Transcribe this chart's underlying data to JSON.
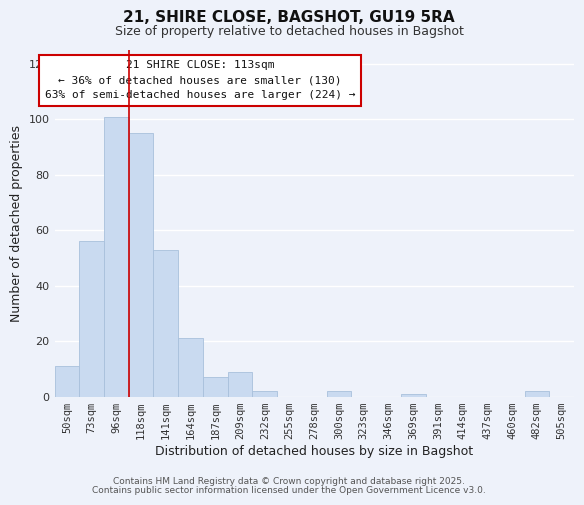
{
  "title": "21, SHIRE CLOSE, BAGSHOT, GU19 5RA",
  "subtitle": "Size of property relative to detached houses in Bagshot",
  "xlabel": "Distribution of detached houses by size in Bagshot",
  "ylabel": "Number of detached properties",
  "bar_labels": [
    "50sqm",
    "73sqm",
    "96sqm",
    "118sqm",
    "141sqm",
    "164sqm",
    "187sqm",
    "209sqm",
    "232sqm",
    "255sqm",
    "278sqm",
    "300sqm",
    "323sqm",
    "346sqm",
    "369sqm",
    "391sqm",
    "414sqm",
    "437sqm",
    "460sqm",
    "482sqm",
    "505sqm"
  ],
  "bar_values": [
    11,
    56,
    101,
    95,
    53,
    21,
    7,
    9,
    2,
    0,
    0,
    2,
    0,
    0,
    1,
    0,
    0,
    0,
    0,
    2,
    0
  ],
  "bar_color": "#c9daf0",
  "bar_edge_color": "#a8c0dc",
  "ylim": [
    0,
    125
  ],
  "yticks": [
    0,
    20,
    40,
    60,
    80,
    100,
    120
  ],
  "property_line_x": 2.5,
  "property_line_color": "#cc0000",
  "annotation_box_title": "21 SHIRE CLOSE: 113sqm",
  "annotation_line1": "← 36% of detached houses are smaller (130)",
  "annotation_line2": "63% of semi-detached houses are larger (224) →",
  "footer1": "Contains HM Land Registry data © Crown copyright and database right 2025.",
  "footer2": "Contains public sector information licensed under the Open Government Licence v3.0.",
  "background_color": "#eef2fa",
  "grid_color": "#ffffff",
  "annotation_box_color": "#ffffff",
  "annotation_box_edge_color": "#cc0000",
  "title_fontsize": 11,
  "subtitle_fontsize": 9,
  "xlabel_fontsize": 9,
  "ylabel_fontsize": 9,
  "tick_fontsize": 7.5,
  "annotation_fontsize": 8,
  "footer_fontsize": 6.5
}
